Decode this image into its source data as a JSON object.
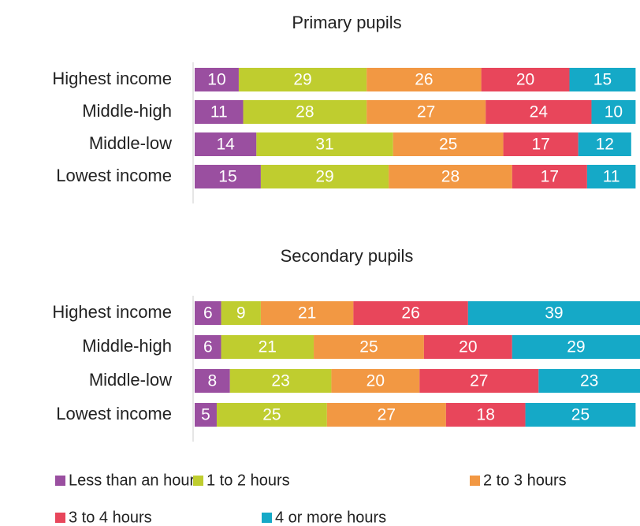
{
  "chart_data": [
    {
      "type": "bar",
      "title": "Primary pupils",
      "categories": [
        "Highest income",
        "Middle-high",
        "Middle-low",
        "Lowest income"
      ],
      "series": [
        {
          "name": "Less than an hour",
          "color": "#9a4fa0",
          "values": [
            10,
            11,
            14,
            15
          ]
        },
        {
          "name": "1 to 2 hours",
          "color": "#bfcd2f",
          "values": [
            29,
            28,
            31,
            29
          ]
        },
        {
          "name": "2 to 3 hours",
          "color": "#f29843",
          "values": [
            26,
            27,
            25,
            28
          ]
        },
        {
          "name": "3 to 4 hours",
          "color": "#e8465b",
          "values": [
            20,
            24,
            17,
            17
          ]
        },
        {
          "name": "4 or more hours",
          "color": "#15a9c7",
          "values": [
            15,
            10,
            12,
            11
          ]
        }
      ]
    },
    {
      "type": "bar",
      "title": "Secondary pupils",
      "categories": [
        "Highest income",
        "Middle-high",
        "Middle-low",
        "Lowest income"
      ],
      "series": [
        {
          "color": "#9a4fa0",
          "values": [
            6,
            6,
            8,
            5
          ]
        },
        {
          "color": "#bfcd2f",
          "values": [
            9,
            21,
            23,
            25
          ]
        },
        {
          "color": "#f29843",
          "values": [
            21,
            25,
            20,
            27
          ]
        },
        {
          "color": "#e8465b",
          "values": [
            26,
            20,
            27,
            18
          ]
        },
        {
          "color": "#15a9c7",
          "values": [
            39,
            29,
            23,
            25
          ]
        }
      ]
    }
  ]
}
